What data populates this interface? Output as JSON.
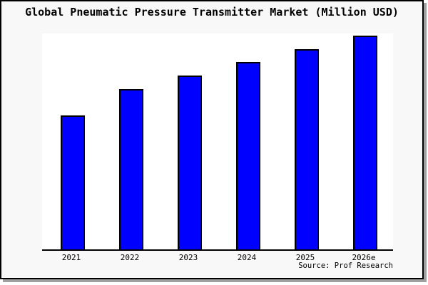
{
  "chart_data": {
    "type": "bar",
    "title": "Global Pneumatic Pressure Transmitter Market (Million USD)",
    "categories": [
      "2021",
      "2022",
      "2023",
      "2024",
      "2025",
      "2026e"
    ],
    "values": [
      62.7,
      75.0,
      81.4,
      87.7,
      93.6,
      100.0
    ],
    "value_unit": "relative bar height, tallest bar (2026e) = 100; no numeric y-axis shown",
    "xlabel": "",
    "ylabel": "",
    "ylim": [
      0,
      101
    ],
    "grid": false,
    "legend": false,
    "bar_color": "#0000ff",
    "bar_border_color": "#000000"
  },
  "footer": {
    "source": "Source: Prof Research"
  },
  "colors": {
    "canvas_background": "#f8f8f8",
    "plot_background": "#ffffff",
    "frame_border": "#000000",
    "drop_shadow": "#a0a0a0",
    "axis_line": "#000000",
    "text": "#000000"
  }
}
